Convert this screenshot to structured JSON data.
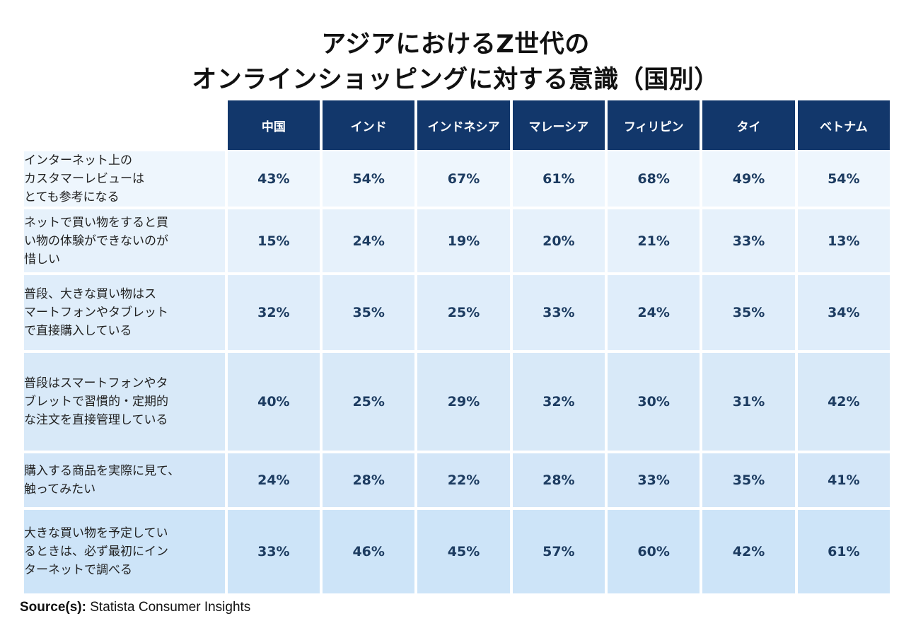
{
  "title": {
    "line1": "アジアにおけるZ世代の",
    "line2": "オンラインショッピングに対する意識（国別）"
  },
  "chart_data": {
    "type": "table",
    "title": "アジアにおけるZ世代の オンラインショッピングに対する意識（国別）",
    "columns": [
      "中国",
      "インド",
      "インドネシア",
      "マレーシア",
      "フィリピン",
      "タイ",
      "ベトナム"
    ],
    "rows": [
      {
        "label_lines": [
          "インターネット上の",
          "カスタマーレビューは",
          "とても参考になる"
        ],
        "values": [
          "43%",
          "54%",
          "67%",
          "61%",
          "68%",
          "49%",
          "54%"
        ]
      },
      {
        "label_lines": [
          "ネットで買い物をすると買",
          "い物の体験ができないのが",
          "惜しい"
        ],
        "values": [
          "15%",
          "24%",
          "19%",
          "20%",
          "21%",
          "33%",
          "13%"
        ]
      },
      {
        "label_lines": [
          "普段、大きな買い物はス",
          "マートフォンやタブレット",
          "で直接購入している"
        ],
        "values": [
          "32%",
          "35%",
          "25%",
          "33%",
          "24%",
          "35%",
          "34%"
        ]
      },
      {
        "label_lines": [
          "普段はスマートフォンやタ",
          "ブレットで習慣的・定期的",
          "な注文を直接管理している"
        ],
        "values": [
          "40%",
          "25%",
          "29%",
          "32%",
          "30%",
          "31%",
          "42%"
        ]
      },
      {
        "label_lines": [
          "購入する商品を実際に見て、",
          "触ってみたい"
        ],
        "values": [
          "24%",
          "28%",
          "22%",
          "28%",
          "33%",
          "35%",
          "41%"
        ]
      },
      {
        "label_lines": [
          "大きな買い物を予定してい",
          "るときは、必ず最初にイン",
          "ターネットで調べる"
        ],
        "values": [
          "33%",
          "46%",
          "45%",
          "57%",
          "60%",
          "42%",
          "61%"
        ]
      }
    ]
  },
  "source": {
    "label": "Source(s):",
    "text": "Statista Consumer Insights"
  },
  "colors": {
    "header_bg": "#12376b",
    "header_text": "#ffffff",
    "value_text": "#1d3c61"
  }
}
